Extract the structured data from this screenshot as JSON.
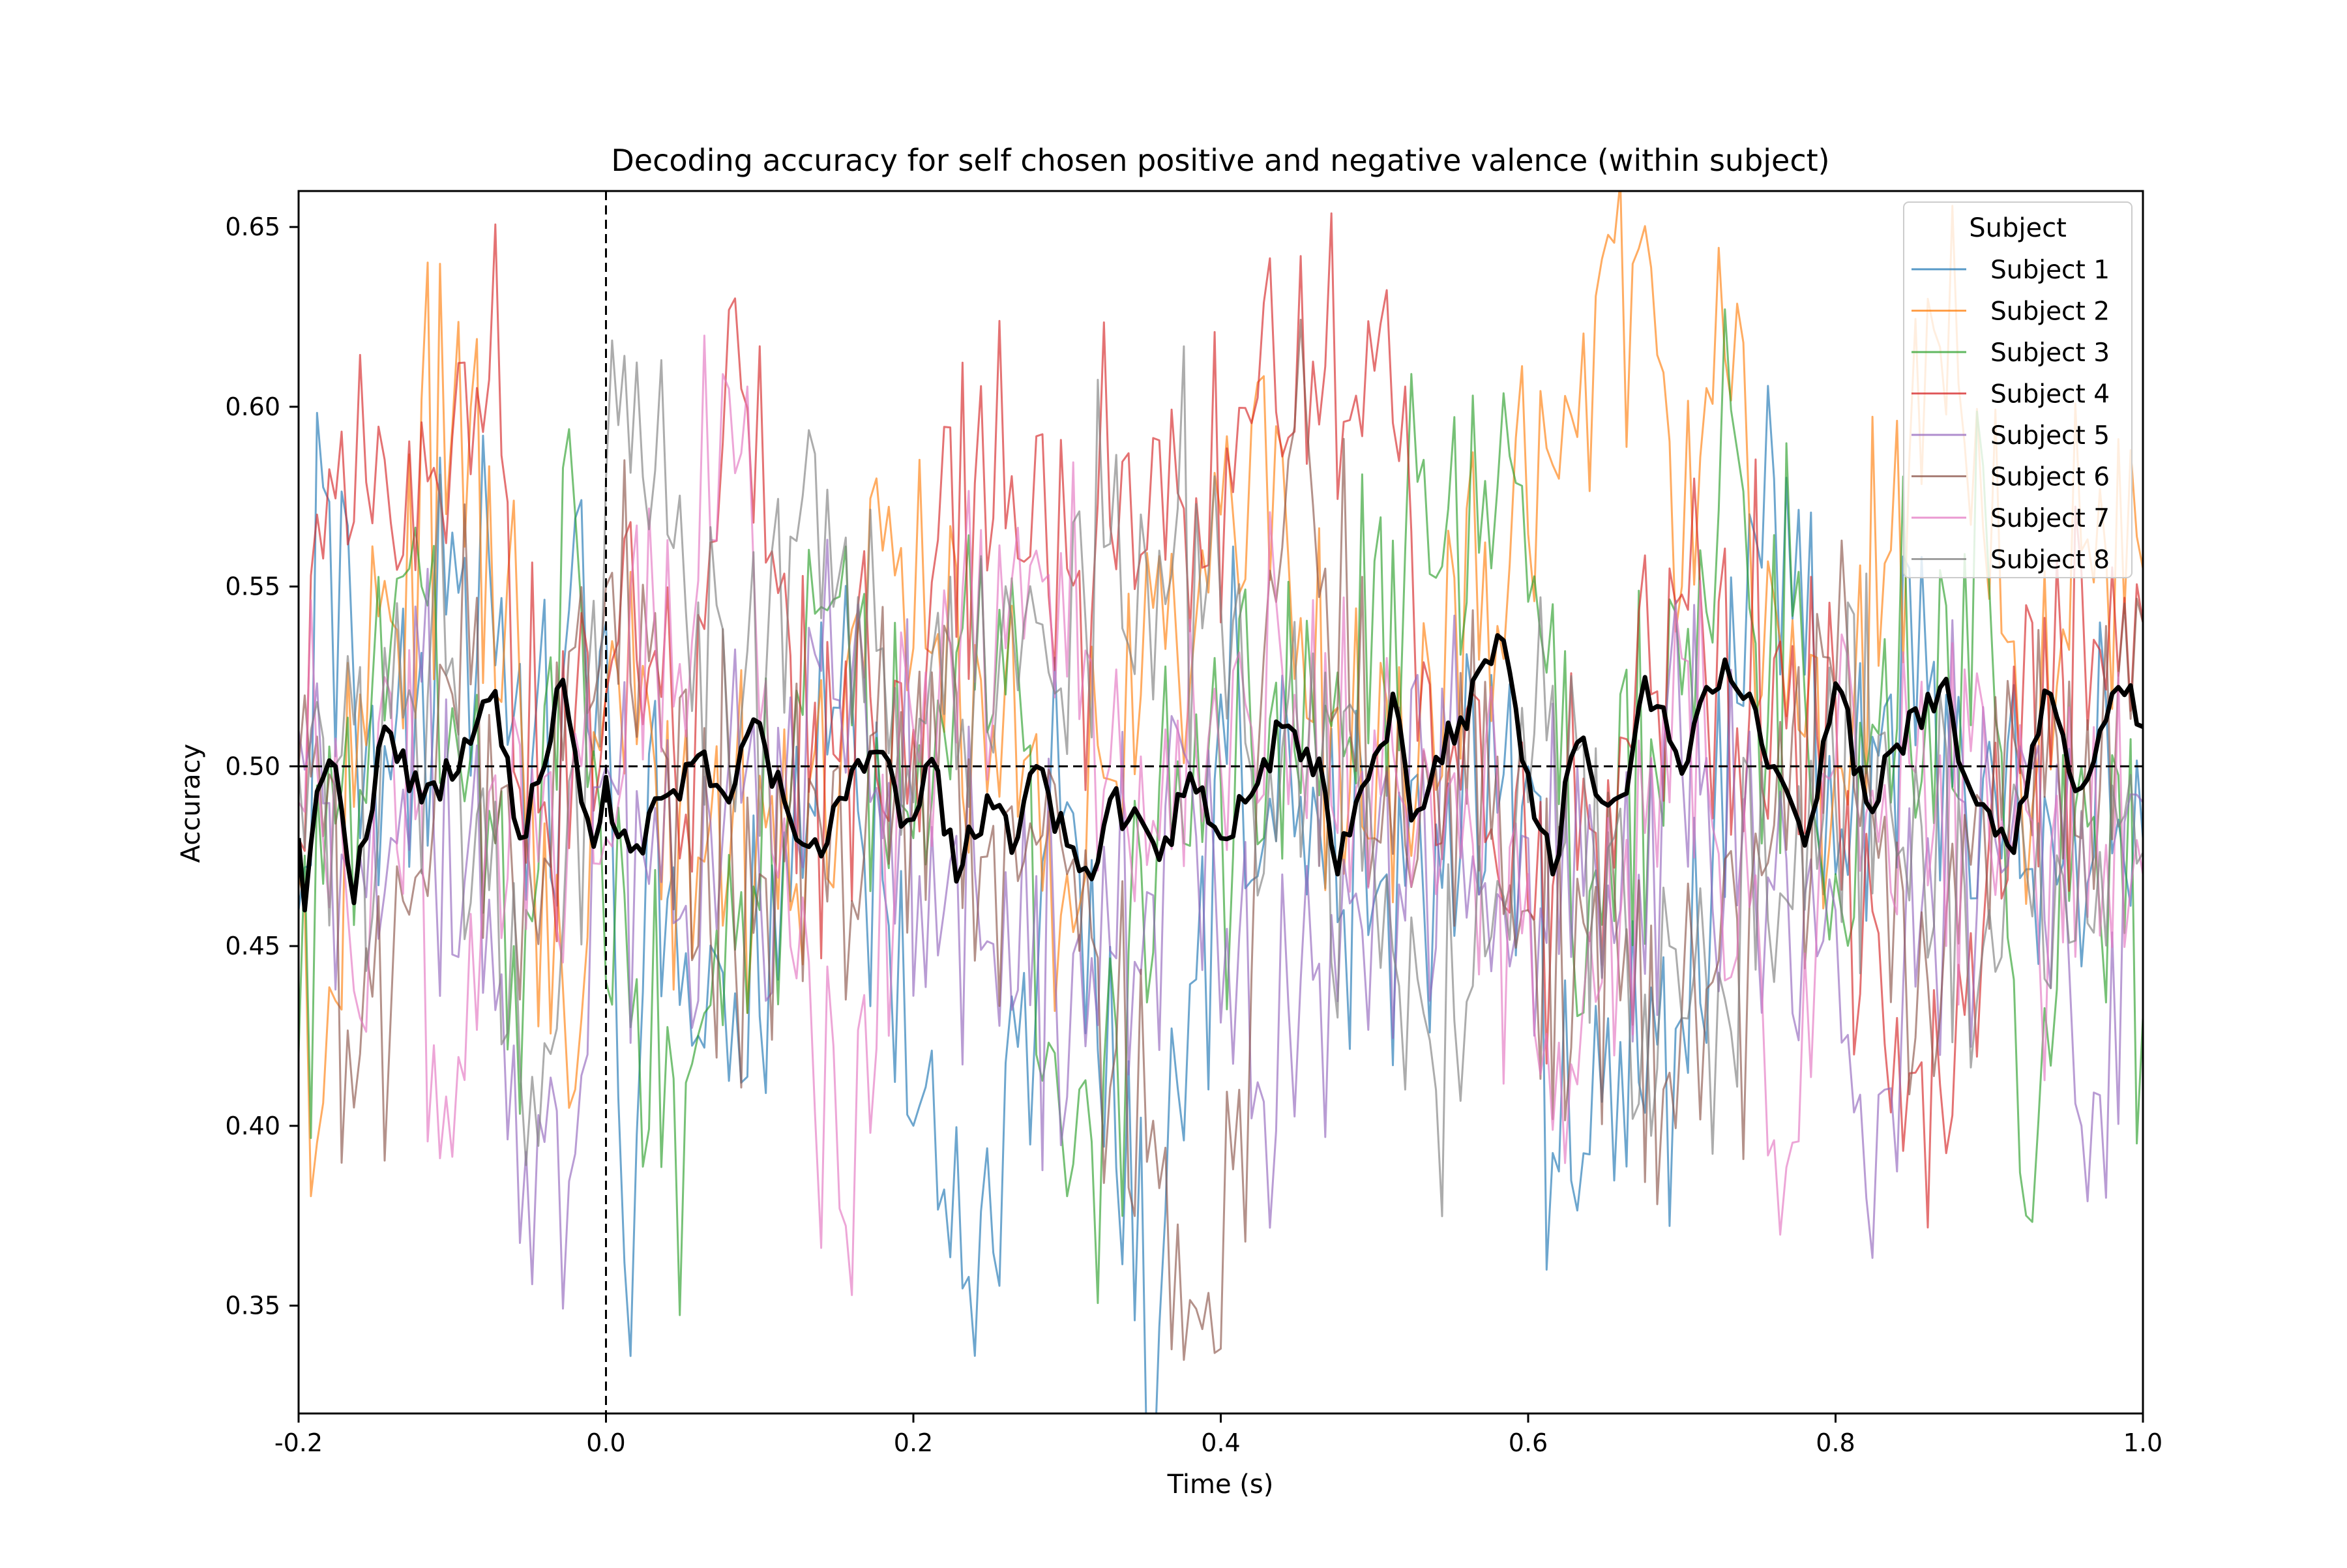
{
  "chart_data": {
    "type": "line",
    "title": "Decoding accuracy for self chosen positive and negative valence (within subject)",
    "xlabel": "Time (s)",
    "ylabel": "Accuracy",
    "xlim": [
      -0.2,
      1.0
    ],
    "ylim": [
      0.32,
      0.66
    ],
    "xticks": [
      {
        "value": -0.2,
        "label": "-0.2"
      },
      {
        "value": 0.0,
        "label": "0.0"
      },
      {
        "value": 0.2,
        "label": "0.2"
      },
      {
        "value": 0.4,
        "label": "0.4"
      },
      {
        "value": 0.6,
        "label": "0.6"
      },
      {
        "value": 0.8,
        "label": "0.8"
      },
      {
        "value": 1.0,
        "label": "1.0"
      }
    ],
    "yticks": [
      {
        "value": 0.35,
        "label": "0.35"
      },
      {
        "value": 0.4,
        "label": "0.40"
      },
      {
        "value": 0.45,
        "label": "0.45"
      },
      {
        "value": 0.5,
        "label": "0.50"
      },
      {
        "value": 0.55,
        "label": "0.55"
      },
      {
        "value": 0.6,
        "label": "0.60"
      },
      {
        "value": 0.65,
        "label": "0.65"
      }
    ],
    "grid": false,
    "legend": {
      "title": "Subject",
      "placement": "top-right"
    },
    "reference_lines": [
      {
        "orientation": "horizontal",
        "value": 0.5,
        "style": "dashed",
        "color": "#000000"
      },
      {
        "orientation": "vertical",
        "value": 0.0,
        "style": "dashed",
        "color": "#000000"
      }
    ],
    "x": {
      "start": -0.2,
      "end": 1.0,
      "step": 0.004
    },
    "series": [
      {
        "name": "Subject 1",
        "color": "#1f77b4",
        "keypoints": [
          [
            -0.2,
            0.46
          ],
          [
            -0.182,
            0.583
          ],
          [
            -0.16,
            0.48
          ],
          [
            -0.1,
            0.565
          ],
          [
            -0.05,
            0.5
          ],
          [
            0.0,
            0.54
          ],
          [
            0.01,
            0.375
          ],
          [
            0.016,
            0.336
          ],
          [
            0.03,
            0.47
          ],
          [
            0.09,
            0.41
          ],
          [
            0.15,
            0.52
          ],
          [
            0.236,
            0.358
          ],
          [
            0.3,
            0.49
          ],
          [
            0.36,
            0.344
          ],
          [
            0.4,
            0.52
          ],
          [
            0.48,
            0.46
          ],
          [
            0.6,
            0.5
          ],
          [
            0.618,
            0.379
          ],
          [
            0.7,
            0.43
          ],
          [
            0.76,
            0.58
          ],
          [
            0.8,
            0.47
          ],
          [
            0.86,
            0.52
          ],
          [
            0.93,
            0.47
          ],
          [
            1.0,
            0.48
          ]
        ]
      },
      {
        "name": "Subject 2",
        "color": "#ff7f0e",
        "keypoints": [
          [
            -0.2,
            0.47
          ],
          [
            -0.186,
            0.387
          ],
          [
            -0.16,
            0.52
          ],
          [
            -0.09,
            0.605
          ],
          [
            -0.05,
            0.5
          ],
          [
            -0.024,
            0.405
          ],
          [
            0.0,
            0.52
          ],
          [
            0.12,
            0.46
          ],
          [
            0.18,
            0.56
          ],
          [
            0.3,
            0.47
          ],
          [
            0.4,
            0.57
          ],
          [
            0.42,
            0.595
          ],
          [
            0.5,
            0.48
          ],
          [
            0.62,
            0.58
          ],
          [
            0.672,
            0.644
          ],
          [
            0.7,
            0.55
          ],
          [
            0.735,
            0.635
          ],
          [
            0.75,
            0.54
          ],
          [
            0.8,
            0.5
          ],
          [
            0.87,
            0.62
          ],
          [
            0.92,
            0.5
          ],
          [
            0.96,
            0.56
          ],
          [
            1.0,
            0.555
          ]
        ]
      },
      {
        "name": "Subject 3",
        "color": "#2ca02c",
        "keypoints": [
          [
            -0.2,
            0.42
          ],
          [
            -0.17,
            0.49
          ],
          [
            -0.12,
            0.55
          ],
          [
            -0.06,
            0.45
          ],
          [
            -0.02,
            0.57
          ],
          [
            0.0,
            0.44
          ],
          [
            0.05,
            0.41
          ],
          [
            0.1,
            0.46
          ],
          [
            0.15,
            0.55
          ],
          [
            0.2,
            0.48
          ],
          [
            0.25,
            0.55
          ],
          [
            0.31,
            0.362
          ],
          [
            0.35,
            0.48
          ],
          [
            0.45,
            0.5
          ],
          [
            0.52,
            0.56
          ],
          [
            0.59,
            0.587
          ],
          [
            0.63,
            0.45
          ],
          [
            0.7,
            0.52
          ],
          [
            0.73,
            0.58
          ],
          [
            0.8,
            0.47
          ],
          [
            0.9,
            0.55
          ],
          [
            0.92,
            0.387
          ],
          [
            0.96,
            0.5
          ],
          [
            1.0,
            0.43
          ]
        ]
      },
      {
        "name": "Subject 4",
        "color": "#d62728",
        "keypoints": [
          [
            -0.2,
            0.48
          ],
          [
            -0.188,
            0.57
          ],
          [
            -0.13,
            0.583
          ],
          [
            -0.07,
            0.605
          ],
          [
            -0.04,
            0.49
          ],
          [
            0.0,
            0.52
          ],
          [
            0.05,
            0.48
          ],
          [
            0.088,
            0.605
          ],
          [
            0.15,
            0.5
          ],
          [
            0.25,
            0.57
          ],
          [
            0.27,
            0.587
          ],
          [
            0.3,
            0.555
          ],
          [
            0.43,
            0.6
          ],
          [
            0.5,
            0.61
          ],
          [
            0.55,
            0.5
          ],
          [
            0.6,
            0.46
          ],
          [
            0.68,
            0.52
          ],
          [
            0.76,
            0.53
          ],
          [
            0.84,
            0.43
          ],
          [
            0.87,
            0.41
          ],
          [
            0.9,
            0.48
          ],
          [
            0.97,
            0.55
          ],
          [
            1.0,
            0.54
          ]
        ]
      },
      {
        "name": "Subject 5",
        "color": "#9467bd",
        "keypoints": [
          [
            -0.2,
            0.51
          ],
          [
            -0.17,
            0.45
          ],
          [
            -0.13,
            0.5
          ],
          [
            -0.03,
            0.377
          ],
          [
            0.0,
            0.5
          ],
          [
            0.05,
            0.46
          ],
          [
            0.15,
            0.52
          ],
          [
            0.22,
            0.46
          ],
          [
            0.33,
            0.44
          ],
          [
            0.38,
            0.5
          ],
          [
            0.43,
            0.405
          ],
          [
            0.5,
            0.47
          ],
          [
            0.6,
            0.48
          ],
          [
            0.66,
            0.46
          ],
          [
            0.7,
            0.5
          ],
          [
            0.8,
            0.46
          ],
          [
            0.82,
            0.38
          ],
          [
            0.86,
            0.48
          ],
          [
            0.93,
            0.5
          ],
          [
            0.96,
            0.4
          ],
          [
            1.0,
            0.49
          ]
        ]
      },
      {
        "name": "Subject 6",
        "color": "#8c564b",
        "keypoints": [
          [
            -0.2,
            0.5
          ],
          [
            -0.16,
            0.42
          ],
          [
            -0.1,
            0.52
          ],
          [
            -0.05,
            0.46
          ],
          [
            0.0,
            0.55
          ],
          [
            0.03,
            0.5
          ],
          [
            0.1,
            0.47
          ],
          [
            0.2,
            0.5
          ],
          [
            0.3,
            0.47
          ],
          [
            0.352,
            0.39
          ],
          [
            0.4,
            0.338
          ],
          [
            0.45,
            0.619
          ],
          [
            0.5,
            0.48
          ],
          [
            0.55,
            0.5
          ],
          [
            0.6,
            0.46
          ],
          [
            0.72,
            0.44
          ],
          [
            0.8,
            0.52
          ],
          [
            0.86,
            0.44
          ],
          [
            0.92,
            0.5
          ],
          [
            0.96,
            0.48
          ],
          [
            1.0,
            0.54
          ]
        ]
      },
      {
        "name": "Subject 7",
        "color": "#e377c2",
        "keypoints": [
          [
            -0.2,
            0.49
          ],
          [
            -0.16,
            0.43
          ],
          [
            -0.14,
            0.52
          ],
          [
            -0.108,
            0.391
          ],
          [
            -0.05,
            0.5
          ],
          [
            0.0,
            0.48
          ],
          [
            0.08,
            0.605
          ],
          [
            0.12,
            0.45
          ],
          [
            0.152,
            0.377
          ],
          [
            0.2,
            0.51
          ],
          [
            0.28,
            0.56
          ],
          [
            0.34,
            0.48
          ],
          [
            0.4,
            0.5
          ],
          [
            0.5,
            0.51
          ],
          [
            0.6,
            0.47
          ],
          [
            0.618,
            0.39
          ],
          [
            0.7,
            0.53
          ],
          [
            0.76,
            0.396
          ],
          [
            0.8,
            0.5
          ],
          [
            0.9,
            0.48
          ],
          [
            1.0,
            0.47
          ]
        ]
      },
      {
        "name": "Subject 8",
        "color": "#7f7f7f",
        "keypoints": [
          [
            -0.2,
            0.5
          ],
          [
            -0.15,
            0.48
          ],
          [
            -0.1,
            0.53
          ],
          [
            -0.046,
            0.386
          ],
          [
            0.0,
            0.58
          ],
          [
            0.046,
            0.58
          ],
          [
            0.08,
            0.5
          ],
          [
            0.13,
            0.578
          ],
          [
            0.2,
            0.49
          ],
          [
            0.28,
            0.54
          ],
          [
            0.36,
            0.56
          ],
          [
            0.45,
            0.5
          ],
          [
            0.5,
            0.47
          ],
          [
            0.54,
            0.41
          ],
          [
            0.6,
            0.49
          ],
          [
            0.7,
            0.43
          ],
          [
            0.8,
            0.49
          ],
          [
            0.9,
            0.46
          ],
          [
            0.95,
            0.47
          ],
          [
            1.0,
            0.476
          ]
        ]
      }
    ],
    "mean_series": {
      "color": "#000000",
      "keypoints": [
        [
          -0.2,
          0.48
        ],
        [
          -0.196,
          0.46
        ],
        [
          -0.188,
          0.493
        ],
        [
          -0.176,
          0.5
        ],
        [
          -0.164,
          0.462
        ],
        [
          -0.144,
          0.511
        ],
        [
          -0.12,
          0.49
        ],
        [
          -0.098,
          0.499
        ],
        [
          -0.074,
          0.526
        ],
        [
          -0.056,
          0.48
        ],
        [
          -0.04,
          0.5
        ],
        [
          -0.028,
          0.524
        ],
        [
          -0.016,
          0.49
        ],
        [
          -0.006,
          0.478
        ],
        [
          0.0,
          0.497
        ],
        [
          0.006,
          0.478
        ],
        [
          0.02,
          0.478
        ],
        [
          0.04,
          0.492
        ],
        [
          0.06,
          0.503
        ],
        [
          0.08,
          0.49
        ],
        [
          0.096,
          0.513
        ],
        [
          0.12,
          0.485
        ],
        [
          0.14,
          0.475
        ],
        [
          0.16,
          0.499
        ],
        [
          0.176,
          0.504
        ],
        [
          0.196,
          0.485
        ],
        [
          0.212,
          0.502
        ],
        [
          0.228,
          0.468
        ],
        [
          0.25,
          0.494
        ],
        [
          0.266,
          0.475
        ],
        [
          0.28,
          0.5
        ],
        [
          0.3,
          0.478
        ],
        [
          0.31,
          0.464
        ],
        [
          0.33,
          0.49
        ],
        [
          0.36,
          0.474
        ],
        [
          0.38,
          0.498
        ],
        [
          0.4,
          0.48
        ],
        [
          0.416,
          0.49
        ],
        [
          0.44,
          0.511
        ],
        [
          0.466,
          0.5
        ],
        [
          0.476,
          0.47
        ],
        [
          0.5,
          0.503
        ],
        [
          0.514,
          0.517
        ],
        [
          0.524,
          0.485
        ],
        [
          0.546,
          0.505
        ],
        [
          0.584,
          0.535
        ],
        [
          0.6,
          0.498
        ],
        [
          0.616,
          0.47
        ],
        [
          0.63,
          0.508
        ],
        [
          0.65,
          0.488
        ],
        [
          0.666,
          0.497
        ],
        [
          0.674,
          0.527
        ],
        [
          0.7,
          0.498
        ],
        [
          0.716,
          0.522
        ],
        [
          0.73,
          0.531
        ],
        [
          0.76,
          0.5
        ],
        [
          0.78,
          0.478
        ],
        [
          0.8,
          0.523
        ],
        [
          0.82,
          0.49
        ],
        [
          0.84,
          0.506
        ],
        [
          0.87,
          0.523
        ],
        [
          0.89,
          0.49
        ],
        [
          0.914,
          0.477
        ],
        [
          0.936,
          0.521
        ],
        [
          0.96,
          0.494
        ],
        [
          0.984,
          0.522
        ],
        [
          1.0,
          0.511
        ]
      ]
    }
  }
}
